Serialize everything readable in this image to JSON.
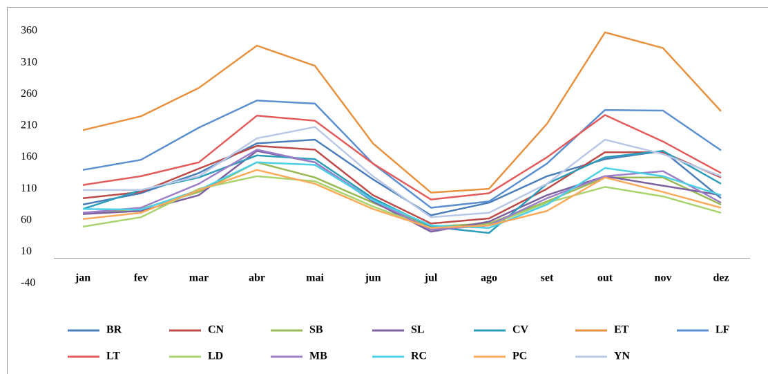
{
  "chart_data": {
    "type": "line",
    "categories": [
      "jan",
      "fev",
      "mar",
      "abr",
      "mai",
      "jun",
      "jul",
      "ago",
      "set",
      "out",
      "nov",
      "dez"
    ],
    "ylim": [
      -40,
      360
    ],
    "yticks": [
      -40,
      10,
      60,
      110,
      160,
      210,
      260,
      310,
      360
    ],
    "legend": "bottom",
    "series": [
      {
        "name": "BR",
        "color": "#4a7ebb",
        "values": [
          85,
          103,
          135,
          182,
          188,
          125,
          68,
          88,
          130,
          157,
          170,
          95
        ]
      },
      {
        "name": "CN",
        "color": "#be4b48",
        "values": [
          95,
          105,
          142,
          178,
          172,
          100,
          55,
          63,
          110,
          168,
          168,
          128
        ]
      },
      {
        "name": "SB",
        "color": "#98b954",
        "values": [
          72,
          78,
          105,
          152,
          128,
          88,
          50,
          55,
          90,
          128,
          128,
          85
        ]
      },
      {
        "name": "SL",
        "color": "#7d60a0",
        "values": [
          70,
          75,
          100,
          170,
          152,
          90,
          42,
          58,
          100,
          130,
          115,
          100
        ]
      },
      {
        "name": "CV",
        "color": "#2c9db8",
        "values": [
          78,
          108,
          128,
          163,
          157,
          95,
          50,
          40,
          118,
          160,
          170,
          118
        ]
      },
      {
        "name": "ET",
        "color": "#e8913e",
        "values": [
          203,
          225,
          270,
          337,
          305,
          182,
          104,
          110,
          213,
          358,
          333,
          233
        ]
      },
      {
        "name": "LF",
        "color": "#5b8fd0",
        "values": [
          140,
          156,
          207,
          250,
          245,
          150,
          80,
          90,
          150,
          235,
          234,
          171
        ]
      },
      {
        "name": "LT",
        "color": "#e35b5b",
        "values": [
          116,
          130,
          152,
          226,
          218,
          150,
          93,
          103,
          160,
          227,
          185,
          135
        ]
      },
      {
        "name": "LD",
        "color": "#a9d36e",
        "values": [
          50,
          65,
          110,
          130,
          122,
          82,
          48,
          52,
          88,
          113,
          98,
          72
        ]
      },
      {
        "name": "MB",
        "color": "#9d7fc9",
        "values": [
          72,
          80,
          118,
          172,
          152,
          92,
          45,
          52,
          95,
          130,
          138,
          88
        ]
      },
      {
        "name": "RC",
        "color": "#4bd0e6",
        "values": [
          78,
          77,
          108,
          152,
          148,
          92,
          52,
          48,
          85,
          143,
          130,
          100
        ]
      },
      {
        "name": "PC",
        "color": "#fbaa5c",
        "values": [
          62,
          72,
          108,
          140,
          118,
          78,
          48,
          52,
          75,
          128,
          105,
          80
        ]
      },
      {
        "name": "YN",
        "color": "#b9c8e6",
        "values": [
          108,
          108,
          130,
          190,
          208,
          130,
          65,
          72,
          118,
          188,
          165,
          130
        ]
      }
    ]
  }
}
